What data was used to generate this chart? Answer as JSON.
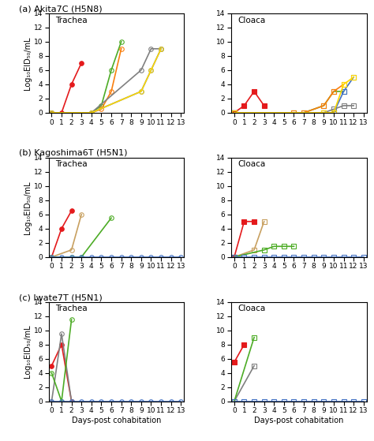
{
  "panels": [
    {
      "label": "(a) Akita7C (H5N8)",
      "trachea": {
        "series": [
          {
            "color": "#e41a1c",
            "marker": "o",
            "filled": true,
            "x": [
              0,
              1,
              2,
              3
            ],
            "y": [
              0,
              0,
              4,
              7
            ]
          },
          {
            "color": "#4dac26",
            "marker": "o",
            "filled": false,
            "x": [
              0,
              4,
              5,
              6,
              7
            ],
            "y": [
              0,
              0,
              1,
              6,
              10
            ]
          },
          {
            "color": "#f97f0f",
            "marker": "o",
            "filled": false,
            "x": [
              0,
              4,
              5,
              6,
              7
            ],
            "y": [
              0,
              0,
              0.5,
              3,
              9
            ]
          },
          {
            "color": "#808080",
            "marker": "o",
            "filled": false,
            "x": [
              0,
              4,
              9,
              10,
              11
            ],
            "y": [
              0,
              0,
              6,
              9,
              9
            ]
          },
          {
            "color": "#4472c4",
            "marker": "o",
            "filled": false,
            "x": [
              0,
              4,
              9,
              10,
              11
            ],
            "y": [
              0,
              0,
              3,
              6,
              9
            ]
          },
          {
            "color": "#ffd700",
            "marker": "o",
            "filled": false,
            "x": [
              0,
              4,
              9,
              10,
              11
            ],
            "y": [
              0,
              0,
              3,
              6,
              9
            ]
          }
        ]
      },
      "cloaca": {
        "series": [
          {
            "color": "#e41a1c",
            "marker": "s",
            "filled": true,
            "x": [
              0,
              1,
              2,
              3
            ],
            "y": [
              0,
              1,
              3,
              1
            ]
          },
          {
            "color": "#4dac26",
            "marker": "s",
            "filled": false,
            "x": [
              0,
              6,
              7,
              9,
              10,
              11
            ],
            "y": [
              0,
              0,
              0,
              1,
              3,
              3
            ]
          },
          {
            "color": "#f97f0f",
            "marker": "s",
            "filled": false,
            "x": [
              0,
              6,
              7,
              9,
              10,
              11
            ],
            "y": [
              0,
              0,
              0,
              1,
              3,
              4
            ]
          },
          {
            "color": "#808080",
            "marker": "s",
            "filled": false,
            "x": [
              0,
              9,
              10,
              11,
              12
            ],
            "y": [
              0,
              0,
              0.5,
              1,
              1
            ]
          },
          {
            "color": "#4472c4",
            "marker": "s",
            "filled": false,
            "x": [
              0,
              9,
              10,
              11,
              12
            ],
            "y": [
              0,
              0,
              0,
              3,
              5
            ]
          },
          {
            "color": "#ffd700",
            "marker": "s",
            "filled": false,
            "x": [
              0,
              9,
              10,
              11,
              12
            ],
            "y": [
              0,
              0,
              0,
              4,
              5
            ]
          }
        ]
      }
    },
    {
      "label": "(b) Kagoshima6T (H5N1)",
      "trachea": {
        "series": [
          {
            "color": "#e41a1c",
            "marker": "o",
            "filled": true,
            "x": [
              0,
              1,
              2
            ],
            "y": [
              0,
              4,
              6.5
            ]
          },
          {
            "color": "#c8a060",
            "marker": "o",
            "filled": false,
            "x": [
              0,
              2,
              3
            ],
            "y": [
              0,
              1,
              6
            ]
          },
          {
            "color": "#4dac26",
            "marker": "o",
            "filled": false,
            "x": [
              0,
              2,
              3,
              6
            ],
            "y": [
              0,
              0,
              0,
              5.5
            ]
          },
          {
            "color": "#4472c4",
            "marker": "o",
            "filled": false,
            "x": [
              0,
              1,
              2,
              3,
              4,
              5,
              6,
              7,
              8,
              9,
              10,
              11,
              12,
              13
            ],
            "y": [
              0,
              0,
              0,
              0,
              0,
              0,
              0,
              0,
              0,
              0,
              0,
              0,
              0,
              0
            ]
          }
        ]
      },
      "cloaca": {
        "series": [
          {
            "color": "#e41a1c",
            "marker": "s",
            "filled": true,
            "x": [
              0,
              1,
              2
            ],
            "y": [
              0,
              5,
              5
            ]
          },
          {
            "color": "#c8a060",
            "marker": "s",
            "filled": false,
            "x": [
              0,
              2,
              3
            ],
            "y": [
              0,
              1,
              5
            ]
          },
          {
            "color": "#4dac26",
            "marker": "s",
            "filled": false,
            "x": [
              0,
              3,
              4,
              5,
              6
            ],
            "y": [
              0,
              1,
              1.5,
              1.5,
              1.5
            ]
          },
          {
            "color": "#4472c4",
            "marker": "s",
            "filled": false,
            "x": [
              0,
              1,
              2,
              3,
              4,
              5,
              6,
              7,
              8,
              9,
              10,
              11,
              12,
              13
            ],
            "y": [
              0,
              0,
              0,
              0,
              0,
              0,
              0,
              0,
              0,
              0,
              0,
              0,
              0,
              0
            ]
          }
        ]
      }
    },
    {
      "label": "(c) Iwate7T (H5N1)",
      "trachea": {
        "series": [
          {
            "color": "#e41a1c",
            "marker": "o",
            "filled": true,
            "x": [
              0,
              1,
              2
            ],
            "y": [
              5,
              8,
              0
            ]
          },
          {
            "color": "#808080",
            "marker": "o",
            "filled": false,
            "x": [
              0,
              1,
              2
            ],
            "y": [
              0,
              9.5,
              0
            ]
          },
          {
            "color": "#4dac26",
            "marker": "o",
            "filled": false,
            "x": [
              0,
              1,
              2
            ],
            "y": [
              4,
              0,
              11.5
            ]
          },
          {
            "color": "#4472c4",
            "marker": "o",
            "filled": false,
            "x": [
              0,
              1,
              2,
              3,
              4,
              5,
              6,
              7,
              8,
              9,
              10,
              11,
              12,
              13
            ],
            "y": [
              0,
              0,
              0,
              0,
              0,
              0,
              0,
              0,
              0,
              0,
              0,
              0,
              0,
              0
            ]
          }
        ]
      },
      "cloaca": {
        "series": [
          {
            "color": "#e41a1c",
            "marker": "s",
            "filled": true,
            "x": [
              0,
              1
            ],
            "y": [
              5.5,
              8
            ]
          },
          {
            "color": "#808080",
            "marker": "s",
            "filled": false,
            "x": [
              0,
              2
            ],
            "y": [
              0,
              5
            ]
          },
          {
            "color": "#4dac26",
            "marker": "s",
            "filled": false,
            "x": [
              0,
              2
            ],
            "y": [
              0,
              9
            ]
          },
          {
            "color": "#4472c4",
            "marker": "s",
            "filled": false,
            "x": [
              0,
              1,
              2,
              3,
              4,
              5,
              6,
              7,
              8,
              9,
              10,
              11,
              12,
              13
            ],
            "y": [
              0,
              0,
              0,
              0,
              0,
              0,
              0,
              0,
              0,
              0,
              0,
              0,
              0,
              0
            ]
          }
        ]
      }
    }
  ],
  "ylim": [
    0,
    14
  ],
  "yticks": [
    0,
    2,
    4,
    6,
    8,
    10,
    12,
    14
  ],
  "xlim": [
    0,
    13
  ],
  "xticks": [
    0,
    1,
    2,
    3,
    4,
    5,
    6,
    7,
    8,
    9,
    10,
    11,
    12,
    13
  ],
  "ylabel": "Log₁₀EID₅₀/mL",
  "xlabel": "Days-post cohabitation"
}
